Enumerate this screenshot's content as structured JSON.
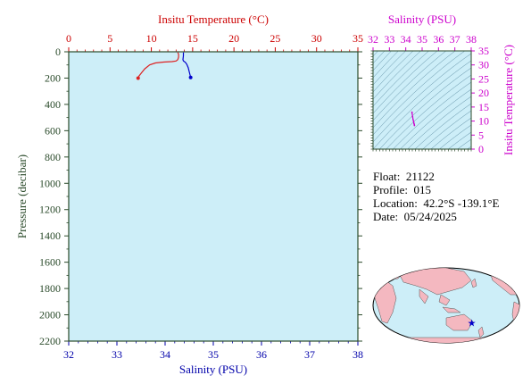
{
  "chart_data": [
    {
      "type": "line",
      "name": "profile",
      "top_axis": {
        "title": "Insitu Temperature (°C)",
        "range": [
          0,
          35
        ],
        "ticks": [
          0,
          5,
          10,
          15,
          20,
          25,
          30,
          35
        ],
        "color": "#cc0000"
      },
      "bottom_axis": {
        "title": "Salinity (PSU)",
        "range": [
          32,
          38
        ],
        "ticks": [
          32,
          33,
          34,
          35,
          36,
          37,
          38
        ],
        "color": "#0000aa"
      },
      "y_axis": {
        "title": "Pressure (decibar)",
        "range": [
          0,
          2200
        ],
        "inverted": true,
        "ticks": [
          0,
          200,
          400,
          600,
          800,
          1000,
          1200,
          1400,
          1600,
          1800,
          2000,
          2200
        ]
      },
      "background": "#cdeef8",
      "series": [
        {
          "axis": "temperature",
          "color": "#dd2222",
          "points": [
            [
              13.2,
              5
            ],
            [
              13.3,
              20
            ],
            [
              13.3,
              40
            ],
            [
              13.2,
              60
            ],
            [
              13.0,
              70
            ],
            [
              12.5,
              75
            ],
            [
              11.5,
              78
            ],
            [
              10.5,
              85
            ],
            [
              9.8,
              100
            ],
            [
              9.2,
              130
            ],
            [
              8.8,
              160
            ],
            [
              8.5,
              185
            ],
            [
              8.4,
              200
            ]
          ]
        },
        {
          "axis": "salinity",
          "color": "#0000cc",
          "points": [
            [
              34.38,
              5
            ],
            [
              34.38,
              30
            ],
            [
              34.37,
              60
            ],
            [
              34.38,
              70
            ],
            [
              34.42,
              80
            ],
            [
              34.45,
              95
            ],
            [
              34.48,
              120
            ],
            [
              34.5,
              150
            ],
            [
              34.52,
              180
            ],
            [
              34.53,
              195
            ]
          ]
        }
      ]
    },
    {
      "type": "scatter",
      "name": "ts-diagram",
      "top_axis": {
        "title": "Salinity (PSU)",
        "range": [
          32,
          38
        ],
        "ticks": [
          32,
          33,
          34,
          35,
          36,
          37,
          38
        ],
        "color": "#cc00cc"
      },
      "right_axis": {
        "title": "Insitu Temperature (°C)",
        "range": [
          0,
          35
        ],
        "ticks": [
          0,
          5,
          10,
          15,
          20,
          25,
          30,
          35
        ],
        "color": "#cc00cc"
      },
      "background": "#cdeef8",
      "series": [
        {
          "color": "#cc00cc",
          "points": [
            [
              34.38,
              13.2
            ],
            [
              34.38,
              13.0
            ],
            [
              34.42,
              11.5
            ],
            [
              34.45,
              10.5
            ],
            [
              34.48,
              9.8
            ],
            [
              34.5,
              9.2
            ],
            [
              34.52,
              8.8
            ],
            [
              34.53,
              8.4
            ]
          ]
        }
      ]
    }
  ],
  "info": {
    "float_label": "Float:",
    "float_value": "21122",
    "profile_label": "Profile:",
    "profile_value": "015",
    "location_label": "Location:",
    "location_value": "42.2°S  -139.1°E",
    "date_label": "Date:",
    "date_value": "05/24/2025"
  },
  "map": {
    "ocean_color": "#cdeef8",
    "land_color": "#f4b8c0",
    "marker_color": "#0000cc",
    "marker_icon": "star-icon",
    "marker_location": {
      "lat": -42.2,
      "lon": -139.1
    }
  }
}
